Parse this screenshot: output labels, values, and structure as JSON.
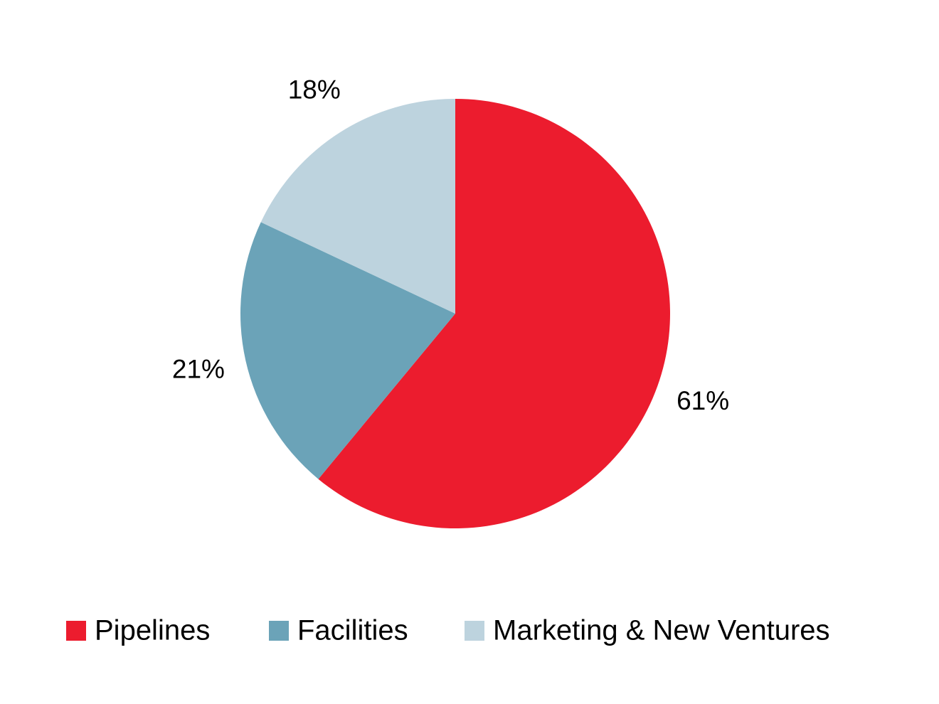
{
  "chart_data": {
    "type": "pie",
    "categories": [
      "Pipelines",
      "Facilities",
      "Marketing & New Ventures"
    ],
    "values": [
      61,
      21,
      18
    ],
    "value_labels": [
      "61%",
      "21%",
      "18%"
    ],
    "colors": [
      "#ec1c2e",
      "#6ba3b8",
      "#bdd3de"
    ],
    "legend": "bottom"
  }
}
